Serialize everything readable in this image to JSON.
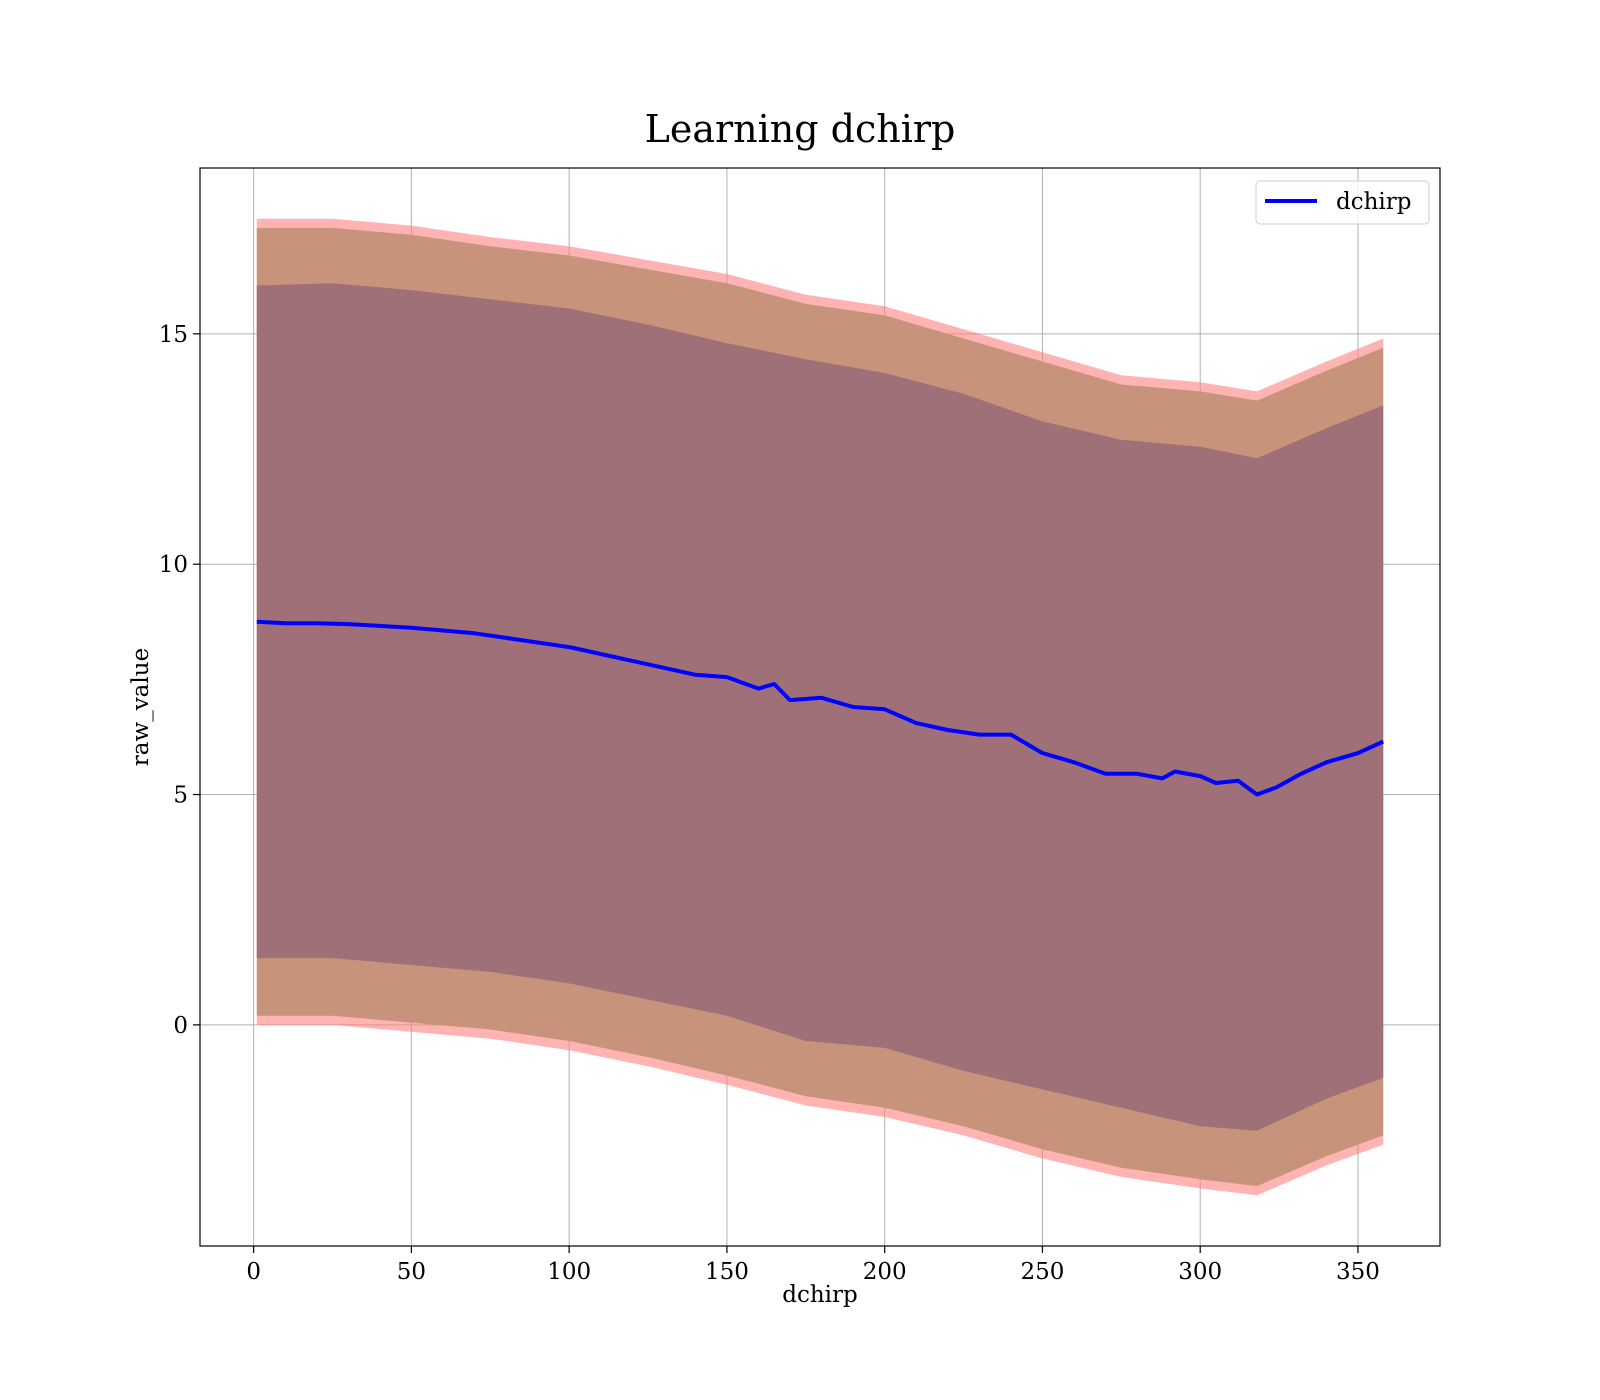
{
  "chart_data": {
    "type": "line",
    "title": "Learning dchirp",
    "xlabel": "dchirp",
    "ylabel": "raw_value",
    "xlim": [
      -17,
      376
    ],
    "ylim": [
      -4.8,
      18.6
    ],
    "xticks": [
      0,
      50,
      100,
      150,
      200,
      250,
      300,
      350
    ],
    "yticks": [
      0,
      5,
      10,
      15
    ],
    "grid": true,
    "legend_position": "top-right",
    "colors": {
      "line": "#0000ff",
      "band_outer": "#ff8080",
      "band_middle": "#c7937a",
      "band_inner": "#a07078",
      "grid": "#b0b0b0"
    },
    "series": [
      {
        "name": "dchirp",
        "x": [
          1,
          10,
          20,
          30,
          40,
          50,
          60,
          70,
          80,
          90,
          100,
          110,
          120,
          130,
          140,
          150,
          160,
          165,
          170,
          180,
          190,
          200,
          210,
          220,
          230,
          240,
          250,
          260,
          270,
          280,
          288,
          292,
          300,
          305,
          312,
          318,
          324,
          332,
          340,
          350,
          358
        ],
        "y": [
          8.75,
          8.72,
          8.72,
          8.7,
          8.66,
          8.62,
          8.56,
          8.5,
          8.4,
          8.3,
          8.2,
          8.05,
          7.9,
          7.75,
          7.6,
          7.55,
          7.3,
          7.4,
          7.05,
          7.1,
          6.9,
          6.85,
          6.55,
          6.4,
          6.3,
          6.3,
          5.9,
          5.7,
          5.45,
          5.45,
          5.35,
          5.5,
          5.4,
          5.25,
          5.3,
          5.0,
          5.15,
          5.45,
          5.7,
          5.9,
          6.15
        ]
      }
    ],
    "bands": {
      "x": [
        1,
        25,
        50,
        75,
        100,
        125,
        150,
        175,
        200,
        225,
        250,
        275,
        300,
        318,
        340,
        358
      ],
      "outer_upper": [
        17.5,
        17.5,
        17.35,
        17.1,
        16.9,
        16.6,
        16.3,
        15.85,
        15.6,
        15.1,
        14.6,
        14.1,
        13.95,
        13.75,
        14.4,
        14.9
      ],
      "middle_upper": [
        17.3,
        17.3,
        17.15,
        16.9,
        16.7,
        16.4,
        16.1,
        15.65,
        15.4,
        14.9,
        14.4,
        13.9,
        13.75,
        13.55,
        14.2,
        14.7
      ],
      "inner_upper": [
        16.05,
        16.1,
        15.95,
        15.75,
        15.55,
        15.2,
        14.8,
        14.45,
        14.15,
        13.7,
        13.1,
        12.7,
        12.55,
        12.3,
        12.95,
        13.45
      ],
      "inner_lower": [
        1.45,
        1.45,
        1.3,
        1.15,
        0.9,
        0.55,
        0.2,
        -0.35,
        -0.5,
        -1.0,
        -1.4,
        -1.8,
        -2.2,
        -2.3,
        -1.6,
        -1.15
      ],
      "middle_lower": [
        0.2,
        0.2,
        0.05,
        -0.1,
        -0.35,
        -0.7,
        -1.1,
        -1.55,
        -1.8,
        -2.2,
        -2.7,
        -3.1,
        -3.35,
        -3.5,
        -2.85,
        -2.4
      ],
      "outer_lower": [
        0.0,
        0.0,
        -0.15,
        -0.3,
        -0.55,
        -0.9,
        -1.3,
        -1.75,
        -2.0,
        -2.4,
        -2.9,
        -3.3,
        -3.55,
        -3.7,
        -3.05,
        -2.6
      ]
    }
  }
}
